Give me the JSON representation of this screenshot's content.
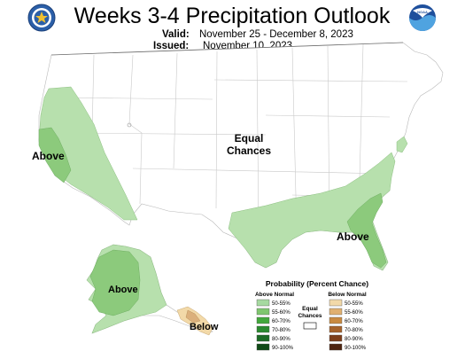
{
  "title": "Weeks 3-4 Precipitation Outlook",
  "valid_label": "Valid:",
  "valid_dates": "November 25 - December 8, 2023",
  "issued_label": "Issued:",
  "issued_date": "November 10, 2023",
  "map_labels": {
    "above_west": "Above",
    "equal_chances_line1": "Equal",
    "equal_chances_line2": "Chances",
    "above_southeast": "Above",
    "above_alaska": "Above",
    "below_alaska": "Below"
  },
  "legend": {
    "title": "Probability (Percent Chance)",
    "above_heading": "Above Normal",
    "below_heading": "Below Normal",
    "ec_line1": "Equal",
    "ec_line2": "Chances",
    "above_items": [
      {
        "label": "50-55%",
        "color": "#a6d9a0"
      },
      {
        "label": "55-60%",
        "color": "#7fc66f"
      },
      {
        "label": "60-70%",
        "color": "#42a83c"
      },
      {
        "label": "70-80%",
        "color": "#2a8a2f"
      },
      {
        "label": "80-90%",
        "color": "#1c6b25"
      },
      {
        "label": "90-100%",
        "color": "#0f4a16"
      }
    ],
    "below_items": [
      {
        "label": "50-55%",
        "color": "#f2d9a8"
      },
      {
        "label": "55-60%",
        "color": "#e0b070"
      },
      {
        "label": "60-70%",
        "color": "#c98a40"
      },
      {
        "label": "70-80%",
        "color": "#a6622a"
      },
      {
        "label": "80-90%",
        "color": "#7d3e1a"
      },
      {
        "label": "90-100%",
        "color": "#4e2410"
      }
    ]
  },
  "colors": {
    "above_light": "#b7e0ad",
    "above_medium": "#8cca7c",
    "below_light": "#f2d9a8",
    "below_medium": "#dbb07c"
  }
}
